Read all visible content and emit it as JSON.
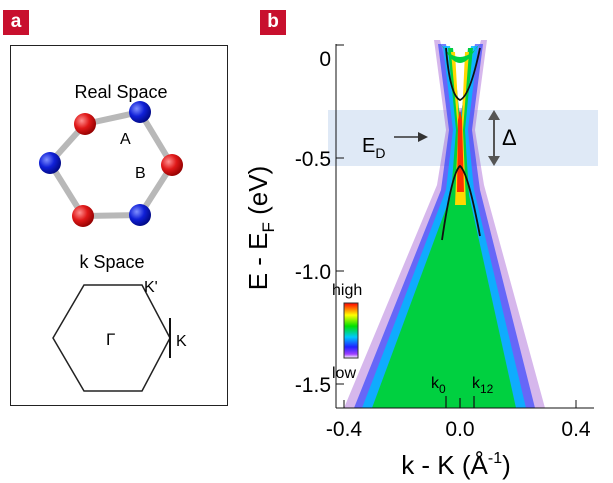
{
  "panel_a": {
    "tag": "a",
    "real_space_title": "Real Space",
    "site_a": "A",
    "site_b": "B",
    "k_space_title": "k Space",
    "gamma": "Γ",
    "k_label": "K",
    "kprime_label": "K'",
    "colors": {
      "red_atom": "#e01818",
      "blue_atom": "#1020d8",
      "bond": "#b8b8b8"
    }
  },
  "panel_b": {
    "tag": "b",
    "ylabel_main": "E - E",
    "ylabel_sub": "F",
    "ylabel_unit": " (eV)",
    "xlabel_main": "k - K (Å",
    "xlabel_sup": "-1",
    "xlabel_end": ")",
    "ed_main": "E",
    "ed_sub": "D",
    "delta": "Δ",
    "k0_main": "k",
    "k0_sub": "0",
    "k12_main": "k",
    "k12_sub": "12",
    "colorbar_high": "high",
    "colorbar_low": "low",
    "band_color": "#dfe9f6"
  },
  "chart_data": {
    "type": "heatmap",
    "title": "",
    "xlabel": "k - K (Å-1)",
    "ylabel": "E - EF (eV)",
    "xlim": [
      -0.4,
      0.4
    ],
    "ylim": [
      -1.6,
      0.0
    ],
    "xticks": [
      "-0.4",
      "0.0",
      "0.4"
    ],
    "yticks": [
      "0",
      "-0.5",
      "-1.0",
      "-1.5"
    ],
    "band_fit": {
      "upper": {
        "vertex_E": -0.25,
        "points": [
          [
            -0.07,
            0.0
          ],
          [
            -0.03,
            -0.17
          ],
          [
            0.0,
            -0.25
          ],
          [
            0.03,
            -0.17
          ],
          [
            0.07,
            0.0
          ]
        ]
      },
      "lower": {
        "vertex_E": -0.55,
        "points": [
          [
            -0.07,
            -0.87
          ],
          [
            -0.03,
            -0.67
          ],
          [
            0.0,
            -0.55
          ],
          [
            0.03,
            -0.67
          ],
          [
            0.07,
            -0.87
          ]
        ]
      }
    },
    "gap_region": {
      "E_top": -0.26,
      "E_bottom": -0.53
    },
    "dirac_energy_eV": -0.42,
    "k_markers": [
      {
        "label": "k0",
        "k": -0.04
      },
      {
        "label": "k12",
        "k": 0.04
      }
    ]
  }
}
